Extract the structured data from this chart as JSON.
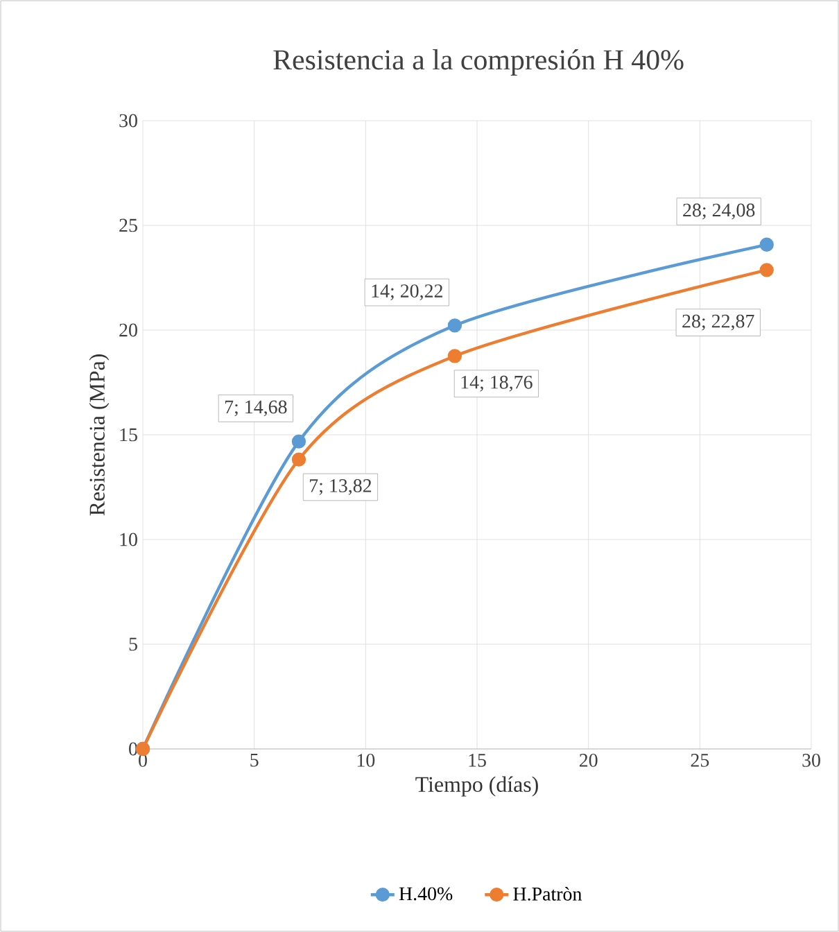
{
  "chart_data": {
    "type": "line",
    "title": "Resistencia a la compresión H 40%",
    "xlabel": "Tiempo (días)",
    "ylabel": "Resistencia (MPa)",
    "x": [
      0,
      7,
      14,
      28
    ],
    "series": [
      {
        "name": "H.40%",
        "color": "#5b9bd5",
        "values": [
          0,
          14.68,
          20.22,
          24.08
        ],
        "value_labels": [
          null,
          "7; 14,68",
          "14; 20,22",
          "28; 24,08"
        ]
      },
      {
        "name": "H.Patròn",
        "color": "#ed7d31",
        "values": [
          0,
          13.82,
          18.76,
          22.87
        ],
        "value_labels": [
          null,
          "7; 13,82",
          "14; 18,76",
          "28; 22,87"
        ]
      }
    ],
    "xlim": [
      0,
      30
    ],
    "ylim": [
      0,
      30
    ],
    "xticks": [
      0,
      5,
      10,
      15,
      20,
      25,
      30
    ],
    "yticks": [
      0,
      5,
      10,
      15,
      20,
      25,
      30
    ],
    "grid": true,
    "legend": "bottom",
    "marker": "circle",
    "line_style": "solid"
  }
}
